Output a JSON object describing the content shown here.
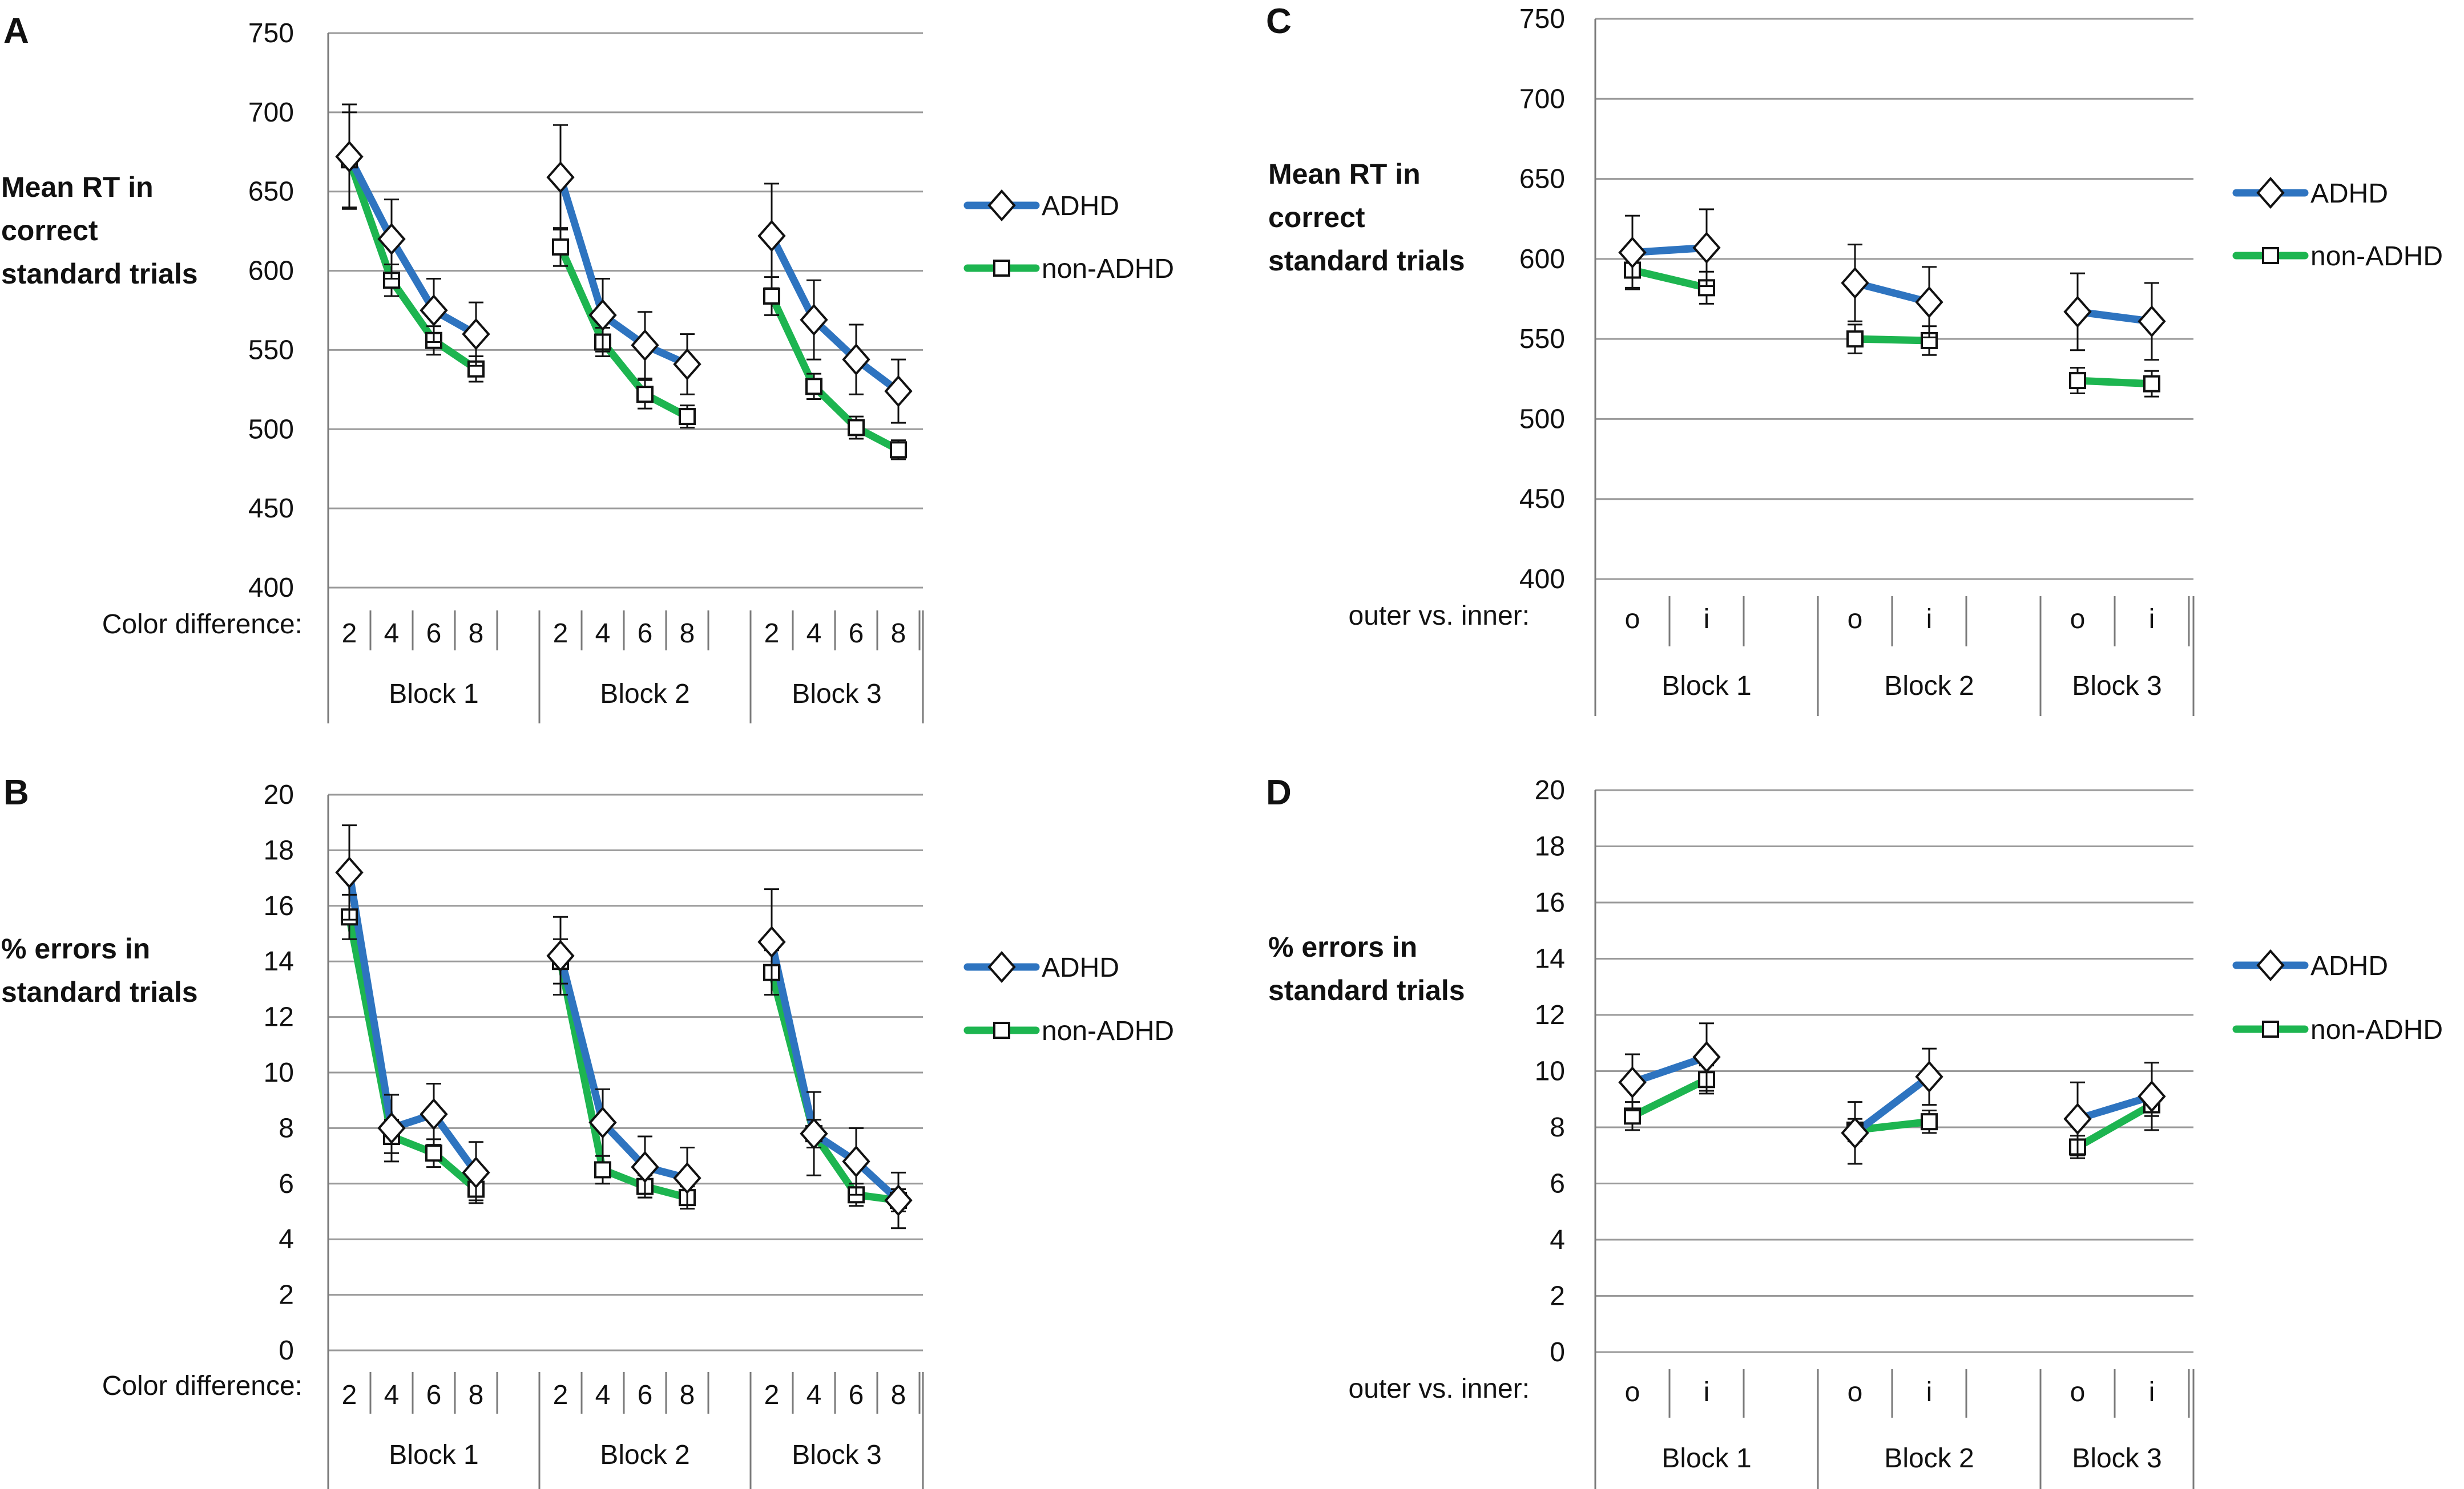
{
  "colors": {
    "adhd": "#2E74C0",
    "nonadhd": "#1DB550",
    "grid": "#9A9A9A",
    "axis": "#7A7A7A",
    "errorbar": "#111111"
  },
  "chart_data": [
    {
      "panel": "A",
      "type": "line",
      "ylabel": [
        "Mean RT in",
        "correct",
        "standard trials"
      ],
      "ylim": [
        400,
        750
      ],
      "yticks": [
        400,
        450,
        500,
        550,
        600,
        650,
        700,
        750
      ],
      "xlabel_row": "Color difference:",
      "blocks": [
        {
          "label": "Block 1",
          "levels": [
            "2",
            "4",
            "6",
            "8"
          ]
        },
        {
          "label": "Block 2",
          "levels": [
            "2",
            "4",
            "6",
            "8"
          ]
        },
        {
          "label": "Block 3",
          "levels": [
            "2",
            "4",
            "6",
            "8"
          ]
        }
      ],
      "series": [
        {
          "name": "ADHD",
          "marker": "diamond",
          "values": [
            [
              672,
              620,
              575,
              560
            ],
            [
              659,
              572,
              553,
              541
            ],
            [
              622,
              569,
              544,
              524
            ]
          ],
          "errors": [
            [
              33,
              25,
              20,
              20
            ],
            [
              33,
              23,
              21,
              19
            ],
            [
              33,
              25,
              22,
              20
            ]
          ]
        },
        {
          "name": "non-ADHD",
          "marker": "square",
          "values": [
            [
              670,
              594,
              556,
              538
            ],
            [
              615,
              555,
              522,
              508
            ],
            [
              584,
              527,
              501,
              487
            ]
          ],
          "errors": [
            [
              30,
              10,
              9,
              8
            ],
            [
              12,
              9,
              9,
              7
            ],
            [
              12,
              8,
              7,
              6
            ]
          ]
        }
      ],
      "legend": [
        "ADHD",
        "non-ADHD"
      ]
    },
    {
      "panel": "B",
      "type": "line",
      "ylabel": [
        "% errors in",
        "standard trials"
      ],
      "ylim": [
        0,
        20
      ],
      "yticks": [
        0,
        2,
        4,
        6,
        8,
        10,
        12,
        14,
        16,
        18,
        20
      ],
      "xlabel_row": "Color difference:",
      "blocks": [
        {
          "label": "Block 1",
          "levels": [
            "2",
            "4",
            "6",
            "8"
          ]
        },
        {
          "label": "Block 2",
          "levels": [
            "2",
            "4",
            "6",
            "8"
          ]
        },
        {
          "label": "Block 3",
          "levels": [
            "2",
            "4",
            "6",
            "8"
          ]
        }
      ],
      "series": [
        {
          "name": "ADHD",
          "marker": "diamond",
          "values": [
            [
              17.2,
              8.0,
              8.5,
              6.4
            ],
            [
              14.2,
              8.2,
              6.6,
              6.2
            ],
            [
              14.7,
              7.8,
              6.8,
              5.4
            ]
          ],
          "errors": [
            [
              1.7,
              1.2,
              1.1,
              1.1
            ],
            [
              1.4,
              1.2,
              1.1,
              1.1
            ],
            [
              1.9,
              1.5,
              1.2,
              1.0
            ]
          ]
        },
        {
          "name": "non-ADHD",
          "marker": "square",
          "values": [
            [
              15.6,
              7.7,
              7.1,
              5.8
            ],
            [
              14.0,
              6.5,
              5.9,
              5.5
            ],
            [
              13.6,
              7.8,
              5.6,
              5.4
            ]
          ],
          "errors": [
            [
              0.8,
              0.6,
              0.5,
              0.4
            ],
            [
              0.8,
              0.5,
              0.4,
              0.4
            ],
            [
              0.8,
              0.5,
              0.4,
              0.4
            ]
          ]
        }
      ],
      "legend": [
        "ADHD",
        "non-ADHD"
      ]
    },
    {
      "panel": "C",
      "type": "line",
      "ylabel": [
        "Mean RT in",
        "correct",
        "standard trials"
      ],
      "ylim": [
        400,
        750
      ],
      "yticks": [
        400,
        450,
        500,
        550,
        600,
        650,
        700,
        750
      ],
      "xlabel_row": "outer vs. inner:",
      "blocks": [
        {
          "label": "Block 1",
          "levels": [
            "o",
            "i"
          ]
        },
        {
          "label": "Block 2",
          "levels": [
            "o",
            "i"
          ]
        },
        {
          "label": "Block 3",
          "levels": [
            "o",
            "i"
          ]
        }
      ],
      "series": [
        {
          "name": "ADHD",
          "marker": "diamond",
          "values": [
            [
              604,
              607
            ],
            [
              585,
              573
            ],
            [
              567,
              561
            ]
          ],
          "errors": [
            [
              23,
              24
            ],
            [
              24,
              22
            ],
            [
              24,
              24
            ]
          ]
        },
        {
          "name": "non-ADHD",
          "marker": "square",
          "values": [
            [
              593,
              582
            ],
            [
              550,
              549
            ],
            [
              524,
              522
            ]
          ],
          "errors": [
            [
              11,
              10
            ],
            [
              9,
              9
            ],
            [
              8,
              8
            ]
          ]
        }
      ],
      "legend": [
        "ADHD",
        "non-ADHD"
      ]
    },
    {
      "panel": "D",
      "type": "line",
      "ylabel": [
        "% errors in",
        "standard trials"
      ],
      "ylim": [
        0,
        20
      ],
      "yticks": [
        0,
        2,
        4,
        6,
        8,
        10,
        12,
        14,
        16,
        18,
        20
      ],
      "xlabel_row": "outer vs. inner:",
      "blocks": [
        {
          "label": "Block 1",
          "levels": [
            "o",
            "i"
          ]
        },
        {
          "label": "Block 2",
          "levels": [
            "o",
            "i"
          ]
        },
        {
          "label": "Block 3",
          "levels": [
            "o",
            "i"
          ]
        }
      ],
      "series": [
        {
          "name": "ADHD",
          "marker": "diamond",
          "values": [
            [
              9.6,
              10.5
            ],
            [
              7.8,
              9.8
            ],
            [
              8.3,
              9.1
            ]
          ],
          "errors": [
            [
              1.0,
              1.2
            ],
            [
              1.1,
              1.0
            ],
            [
              1.3,
              1.2
            ]
          ]
        },
        {
          "name": "non-ADHD",
          "marker": "square",
          "values": [
            [
              8.4,
              9.7
            ],
            [
              7.9,
              8.2
            ],
            [
              7.3,
              8.8
            ]
          ],
          "errors": [
            [
              0.5,
              0.5
            ],
            [
              0.4,
              0.4
            ],
            [
              0.4,
              0.4
            ]
          ]
        }
      ],
      "legend": [
        "ADHD",
        "non-ADHD"
      ]
    }
  ]
}
